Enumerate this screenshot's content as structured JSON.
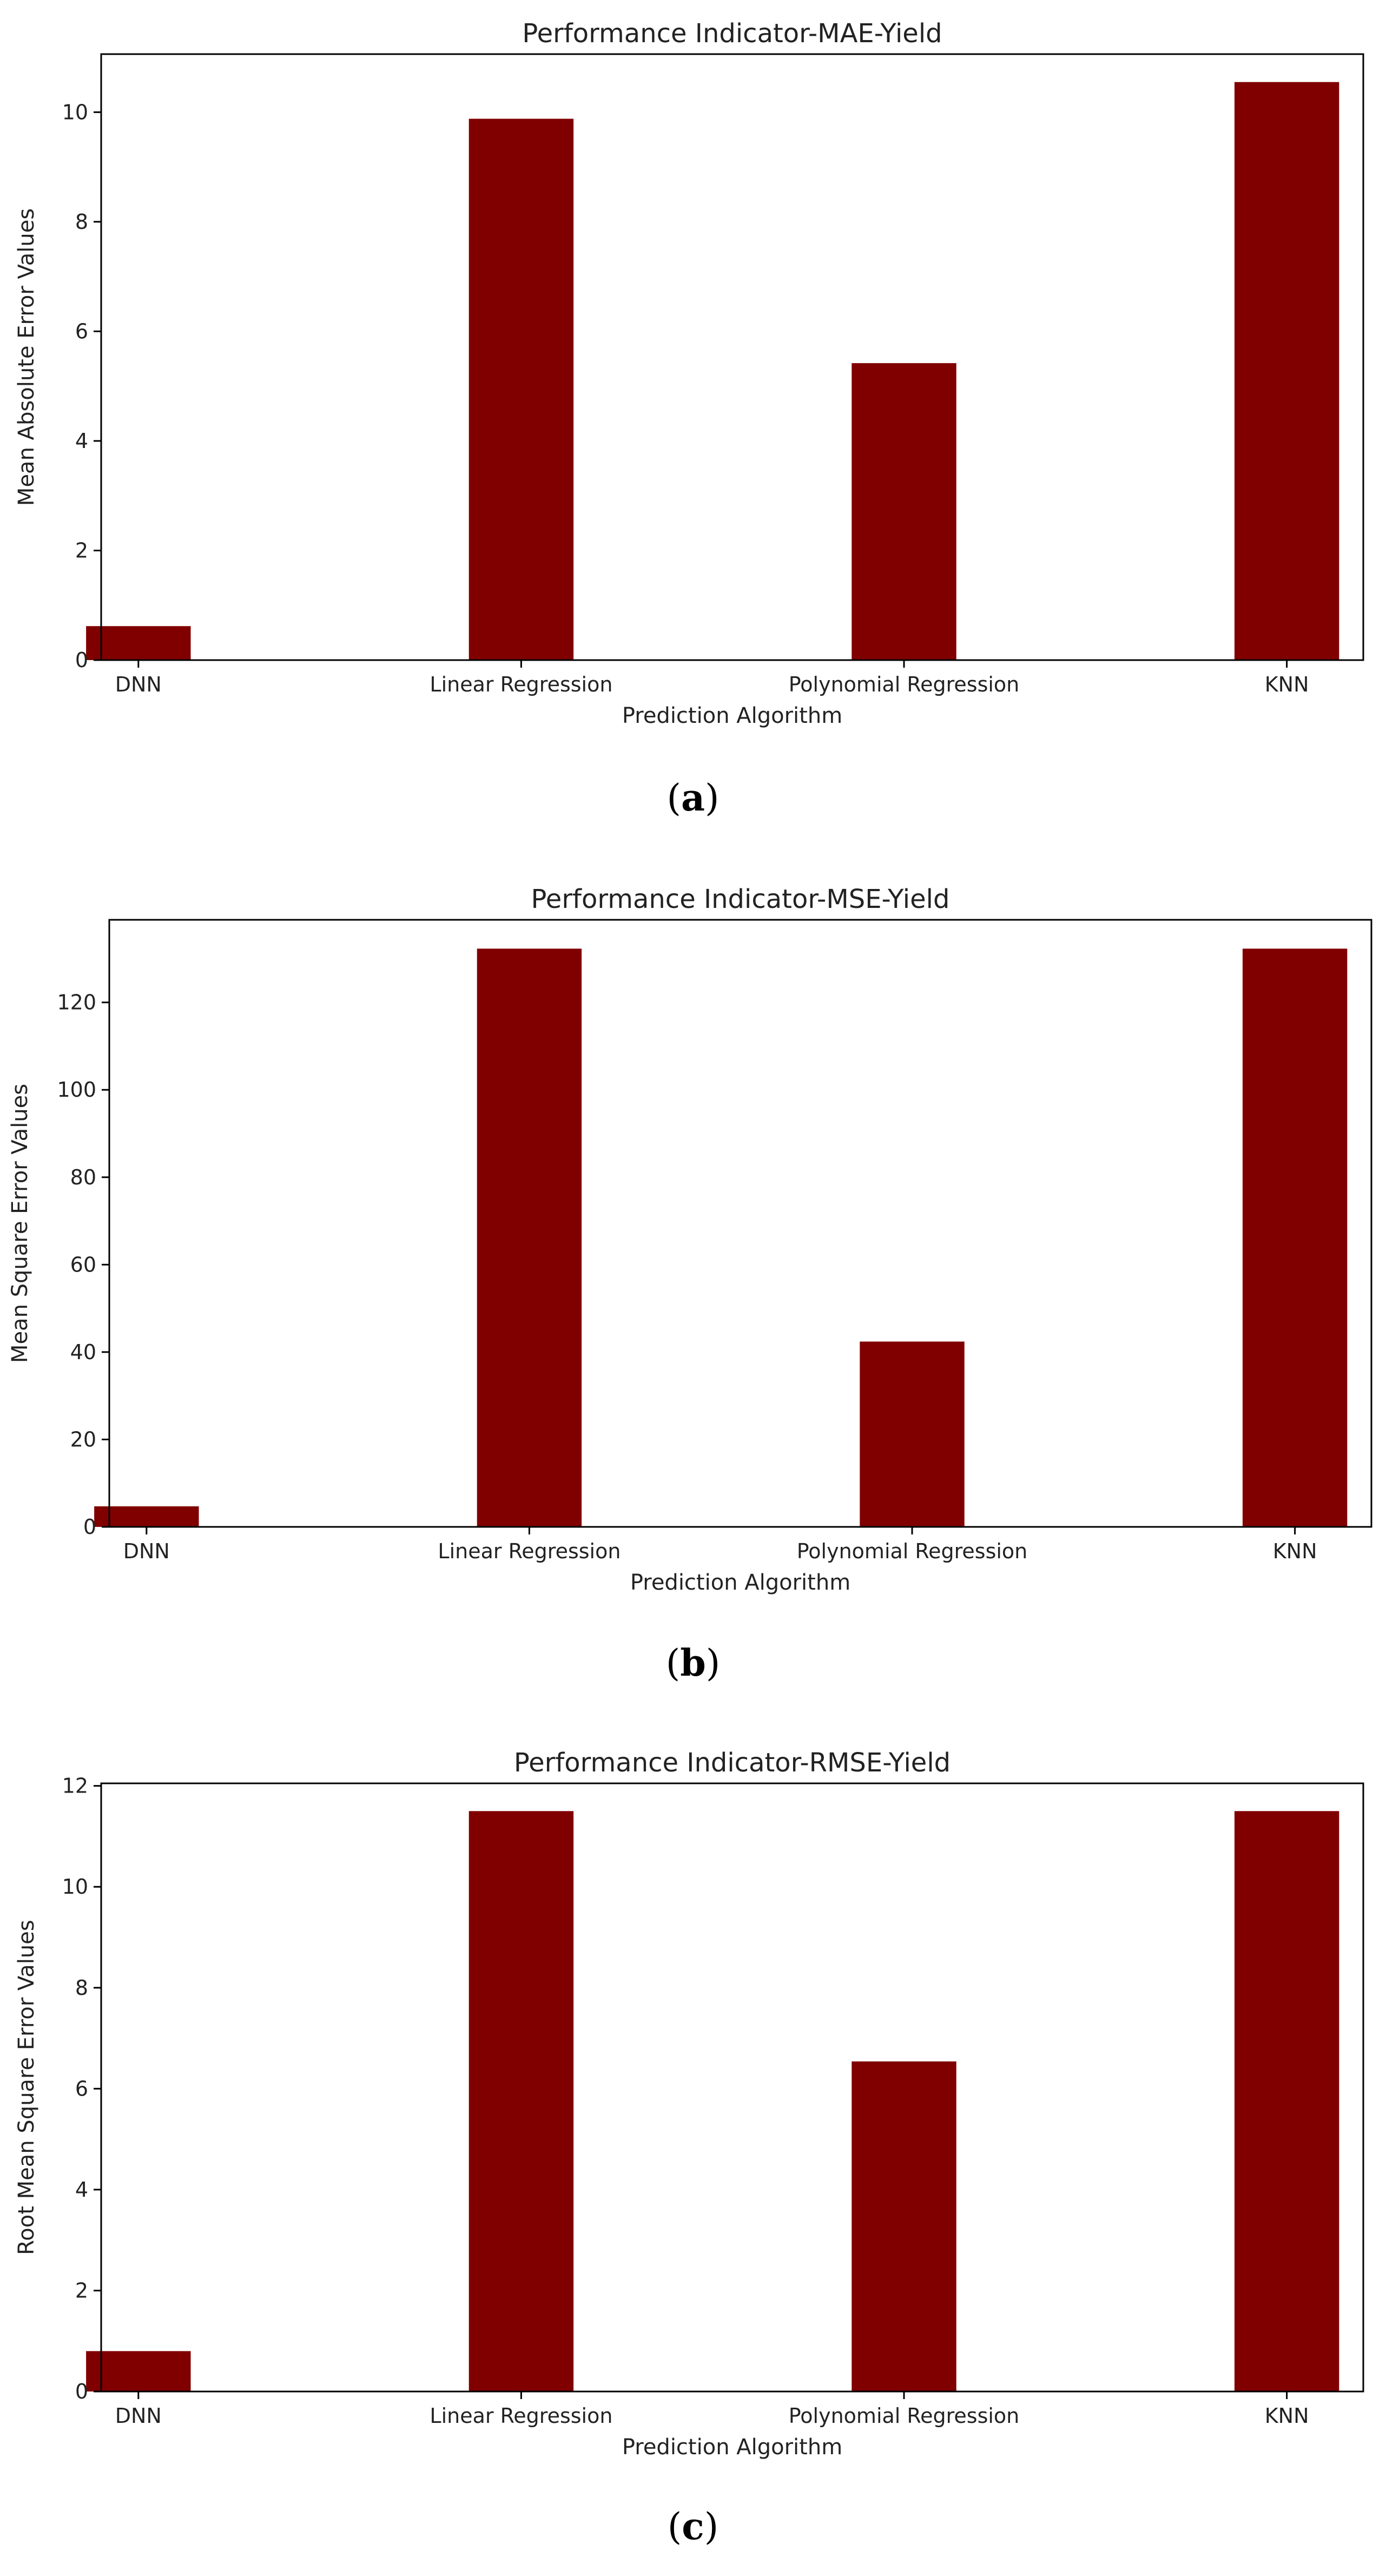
{
  "chart_data": [
    {
      "type": "bar",
      "title": "Performance Indicator-MAE-Yield",
      "xlabel": "Prediction Algorithm",
      "ylabel": "Mean Absolute Error Values",
      "categories": [
        "DNN",
        "Linear Regression",
        "Polynomial Regression",
        "KNN"
      ],
      "values": [
        0.62,
        9.88,
        5.42,
        10.55
      ],
      "ylim": [
        0,
        11.06
      ],
      "yticks": [
        0,
        2,
        4,
        6,
        8,
        10
      ],
      "bar_color": "#800000",
      "caption": {
        "open": "(",
        "letter": "a",
        "close": ")"
      }
    },
    {
      "type": "bar",
      "title": "Performance Indicator-MSE-Yield",
      "xlabel": "Prediction Algorithm",
      "ylabel": "Mean Square Error Values",
      "categories": [
        "DNN",
        "Linear Regression",
        "Polynomial Regression",
        "KNN"
      ],
      "values": [
        4.7,
        132.3,
        42.4,
        132.3
      ],
      "ylim": [
        0,
        138.9
      ],
      "yticks": [
        0,
        20,
        40,
        60,
        80,
        100,
        120
      ],
      "bar_color": "#800000",
      "caption": {
        "open": "(",
        "letter": "b",
        "close": ")"
      }
    },
    {
      "type": "bar",
      "title": "Performance Indicator-RMSE-Yield",
      "xlabel": "Prediction Algorithm",
      "ylabel": "Root Mean Square Error Values",
      "categories": [
        "DNN",
        "Linear Regression",
        "Polynomial Regression",
        "KNN"
      ],
      "values": [
        0.8,
        11.5,
        6.54,
        11.5
      ],
      "ylim": [
        0,
        12.05
      ],
      "yticks": [
        0,
        2,
        4,
        6,
        8,
        10,
        12
      ],
      "bar_color": "#800000",
      "caption": {
        "open": "(",
        "letter": "c",
        "close": ")"
      }
    }
  ]
}
